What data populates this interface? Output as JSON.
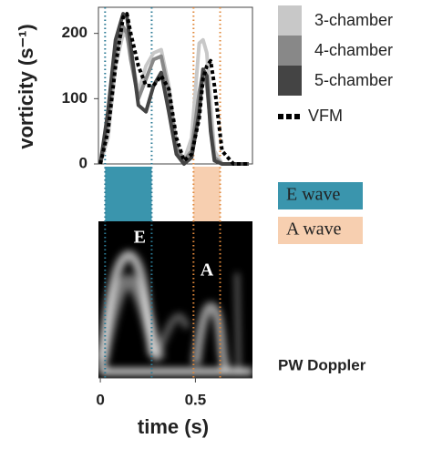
{
  "chart_data": {
    "type": "line",
    "x_label": "time (s)",
    "y_label": "vorticity (s⁻¹)",
    "x": [
      0.0,
      0.04,
      0.08,
      0.12,
      0.14,
      0.16,
      0.2,
      0.24,
      0.28,
      0.32,
      0.36,
      0.4,
      0.44,
      0.48,
      0.52,
      0.54,
      0.56,
      0.58,
      0.6,
      0.64,
      0.7,
      0.78
    ],
    "series": [
      {
        "name": "3-chamber",
        "color": "#c8c8c8",
        "values": [
          0,
          40,
          150,
          200,
          195,
          170,
          110,
          150,
          170,
          175,
          120,
          30,
          5,
          40,
          185,
          190,
          170,
          90,
          20,
          0,
          0,
          0
        ]
      },
      {
        "name": "4-chamber",
        "color": "#888888",
        "values": [
          0,
          60,
          170,
          210,
          200,
          160,
          100,
          130,
          160,
          165,
          110,
          25,
          5,
          20,
          110,
          140,
          120,
          60,
          10,
          0,
          0,
          0
        ]
      },
      {
        "name": "5-chamber",
        "color": "#444444",
        "values": [
          0,
          80,
          190,
          230,
          225,
          180,
          90,
          80,
          120,
          140,
          80,
          15,
          0,
          10,
          80,
          145,
          135,
          50,
          5,
          0,
          0,
          0
        ]
      },
      {
        "name": "VFM",
        "color": "#000000",
        "dashed": true,
        "values": [
          0,
          50,
          150,
          225,
          230,
          200,
          150,
          120,
          120,
          135,
          115,
          40,
          5,
          15,
          70,
          130,
          150,
          158,
          120,
          20,
          0,
          0
        ]
      }
    ],
    "regions": [
      {
        "name": "E wave",
        "color": "#3a95ad",
        "line_color": "#2a7a95",
        "range": [
          0.025,
          0.27
        ],
        "marker": "E"
      },
      {
        "name": "A wave",
        "color": "#f7cfb0",
        "line_color": "#e0883a",
        "range": [
          0.49,
          0.63
        ],
        "marker": "A"
      }
    ],
    "doppler_label": "PW Doppler",
    "xlim": [
      -0.01,
      0.8
    ],
    "xticks": [
      0,
      0.5
    ],
    "ylim": [
      0,
      240
    ],
    "yticks": [
      0,
      100,
      200
    ]
  }
}
